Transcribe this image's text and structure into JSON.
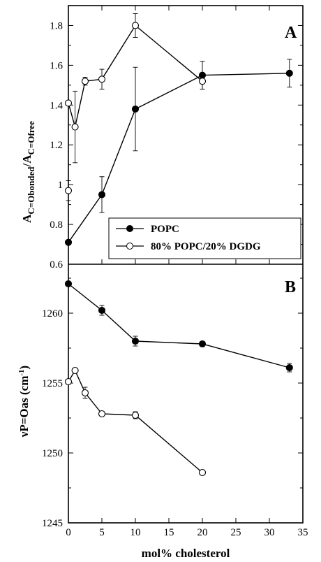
{
  "chart_data": {
    "type": "scatter",
    "xlabel": "mol% cholesterol",
    "x_ticks": [
      "0",
      "5",
      "10",
      "15",
      "20",
      "25",
      "30",
      "35"
    ],
    "xlim": [
      0,
      35
    ],
    "colors": {
      "popc": "#000000",
      "popc_dgdg": "#ffffff",
      "stroke": "#000000"
    },
    "legend": {
      "placement": "lower-right of panel A",
      "entries": [
        "POPC",
        "80% POPC/20% DGDG"
      ]
    },
    "panels": [
      {
        "label": "A",
        "ylabel_main": "A",
        "ylabel_sub1": "C=Obonded",
        "ylabel_sep": "/A",
        "ylabel_sub2": "C=Ofree",
        "ylim": [
          0.6,
          1.9
        ],
        "y_ticks": [
          "0.6",
          "0.8",
          "1",
          "1.2",
          "1.4",
          "1.6",
          "1.8"
        ],
        "series": [
          {
            "name": "POPC",
            "marker": "filled-circle",
            "x": [
              0,
              5,
              10,
              20,
              33
            ],
            "y": [
              0.71,
              0.95,
              1.38,
              1.55,
              1.56
            ],
            "err": [
              0,
              0.09,
              0.21,
              0.07,
              0.07
            ]
          },
          {
            "name": "80% POPC/20% DGDG",
            "marker": "open-circle",
            "points": [
              {
                "x": 0,
                "y": 0.97,
                "err": 0.05,
                "connected": false
              },
              {
                "x": 0,
                "y": 1.41,
                "err": 0,
                "connected": true
              },
              {
                "x": 1,
                "y": 1.29,
                "err": 0.18,
                "connected": true
              },
              {
                "x": 2.5,
                "y": 1.52,
                "err": 0.02,
                "connected": true
              },
              {
                "x": 5,
                "y": 1.53,
                "err": 0.05,
                "connected": true
              },
              {
                "x": 10,
                "y": 1.8,
                "err": 0.06,
                "connected": true
              },
              {
                "x": 20,
                "y": 1.52,
                "err": 0.04,
                "connected": true
              }
            ]
          }
        ]
      },
      {
        "label": "B",
        "ylabel": "νP=Oas (cm",
        "ylabel_sup": "-1",
        "ylabel_end": ")",
        "ylim": [
          1245,
          1263.5
        ],
        "y_ticks": [
          "1245",
          "1250",
          "1255",
          "1260"
        ],
        "series": [
          {
            "name": "POPC",
            "marker": "filled-circle",
            "x": [
              0,
              5,
              10,
              20,
              33
            ],
            "y": [
              1262.1,
              1260.2,
              1258.0,
              1257.8,
              1256.1
            ],
            "err": [
              0,
              0.35,
              0.35,
              0,
              0.3
            ]
          },
          {
            "name": "80% POPC/20% DGDG",
            "marker": "open-circle",
            "x": [
              0,
              1,
              2.5,
              5,
              10,
              20
            ],
            "y": [
              1255.1,
              1255.9,
              1254.3,
              1252.8,
              1252.7,
              1248.6
            ],
            "err": [
              0,
              0,
              0.4,
              0,
              0.25,
              0
            ]
          }
        ]
      }
    ]
  }
}
